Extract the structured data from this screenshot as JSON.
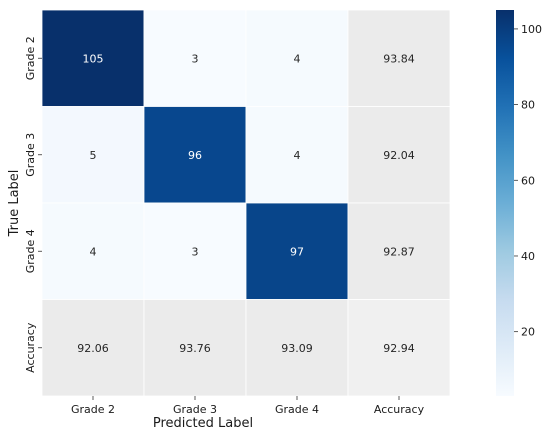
{
  "chart_data": {
    "type": "heatmap",
    "title": "",
    "xlabel": "Predicted Label",
    "ylabel": "True Label",
    "x_categories": [
      "Grade 2",
      "Grade 3",
      "Grade 4",
      "Accuracy"
    ],
    "y_categories": [
      "Grade 2",
      "Grade 3",
      "Grade 4",
      "Accuracy"
    ],
    "cells": [
      [
        105,
        3,
        4,
        93.84
      ],
      [
        5,
        96,
        4,
        92.04
      ],
      [
        4,
        3,
        97,
        92.87
      ],
      [
        92.06,
        93.76,
        93.09,
        92.94
      ]
    ],
    "cell_labels": [
      [
        "105",
        "3",
        "4",
        "93.84"
      ],
      [
        "5",
        "96",
        "4",
        "92.04"
      ],
      [
        "4",
        "3",
        "97",
        "92.87"
      ],
      [
        "92.06",
        "93.76",
        "93.09",
        "92.94"
      ]
    ],
    "colorbar": {
      "colormap": "Blues",
      "min": 3,
      "max": 105,
      "ticks": [
        20,
        40,
        60,
        80,
        100
      ],
      "tick_labels": [
        "20",
        "40",
        "60",
        "80",
        "100"
      ]
    },
    "accuracy_cell_color": "#ebebeb",
    "accuracy_corner_color": "#f0f0f0",
    "grid_lines": "white",
    "legend": "colorbar-right"
  }
}
